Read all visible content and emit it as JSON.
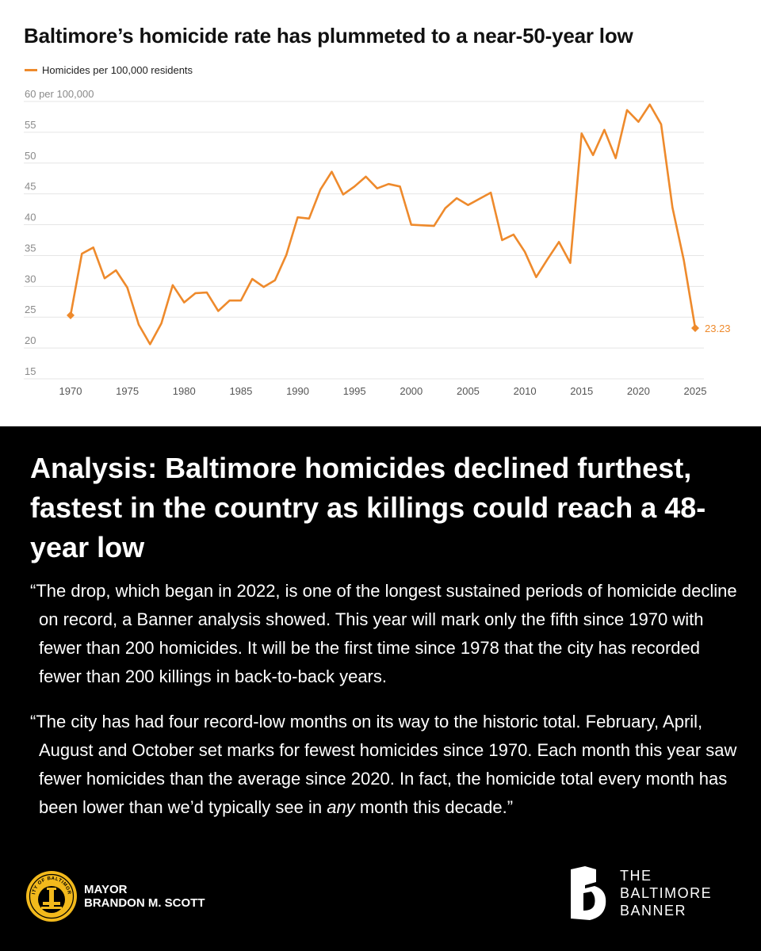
{
  "chart_data": {
    "type": "line",
    "title": "Baltimore’s homicide rate has plummeted to a near-50-year low",
    "legend": "Homicides per 100,000 residents",
    "xlabel": "",
    "ylabel": "",
    "y_top_label": "60 per 100,000",
    "ylim": [
      15,
      60
    ],
    "yticks": [
      "15",
      "20",
      "25",
      "30",
      "35",
      "40",
      "45",
      "50",
      "55"
    ],
    "xlim": [
      1970,
      2025
    ],
    "xticks": [
      "1970",
      "1975",
      "1980",
      "1985",
      "1990",
      "1995",
      "2000",
      "2005",
      "2010",
      "2015",
      "2020",
      "2025"
    ],
    "color": "#EE8A2C",
    "endpoint_label": "23.23",
    "series": [
      {
        "name": "Homicides per 100,000 residents",
        "x": [
          1970,
          1971,
          1972,
          1973,
          1974,
          1975,
          1976,
          1977,
          1978,
          1979,
          1980,
          1981,
          1982,
          1983,
          1984,
          1985,
          1986,
          1987,
          1988,
          1989,
          1990,
          1991,
          1992,
          1993,
          1994,
          1995,
          1996,
          1997,
          1998,
          1999,
          2000,
          2001,
          2002,
          2003,
          2004,
          2005,
          2006,
          2007,
          2008,
          2009,
          2010,
          2011,
          2012,
          2013,
          2014,
          2015,
          2016,
          2017,
          2018,
          2019,
          2020,
          2021,
          2022,
          2023,
          2024,
          2025
        ],
        "values": [
          25.3,
          35.3,
          36.3,
          31.3,
          32.6,
          29.8,
          23.8,
          20.6,
          24.0,
          30.2,
          27.4,
          28.9,
          29.0,
          26.0,
          27.7,
          27.7,
          31.2,
          29.9,
          31.0,
          35.1,
          41.2,
          41.0,
          45.7,
          48.6,
          44.9,
          46.2,
          47.8,
          45.9,
          46.6,
          46.2,
          40.0,
          39.9,
          39.8,
          42.7,
          44.3,
          43.2,
          44.2,
          45.2,
          37.5,
          38.4,
          35.6,
          31.5,
          34.4,
          37.2,
          33.8,
          54.8,
          51.3,
          55.4,
          50.8,
          58.6,
          56.7,
          59.5,
          56.3,
          42.8,
          34.2,
          23.23
        ]
      }
    ]
  },
  "headline": "Analysis: Baltimore homicides declined furthest, fastest in the country as killings could reach a 48-year low",
  "quote1": "“The drop, which began in 2022, is one of the longest sustained periods of homicide decline on record, a Banner analysis showed. This year will mark only the fifth since 1970 with fewer than 200 homicides. It will be the first time since 1978 that the city has recorded fewer than 200 killings in back-to-back years.",
  "quote2": {
    "before": "“The city has had four record-low months on its way to the historic total. February, April, August and October set marks for fewest homicides since 1970. Each month this year saw fewer homicides than the average since 2020. In fact, the homicide total every month has been lower than we’d typically see in ",
    "emphasis": "any",
    "after": " month this decade.”"
  },
  "mayor": {
    "seal_text": "CITY OF BALTIMORE",
    "line1": "MAYOR",
    "line2": "BRANDON M. SCOTT"
  },
  "banner": {
    "line1": "THE",
    "line2": "BALTIMORE",
    "line3": "BANNER"
  },
  "colors": {
    "accent": "#EE8A2C",
    "seal_gold": "#F2B91C",
    "grid": "#E5E5E5",
    "tick_text": "#8A8A8A"
  }
}
